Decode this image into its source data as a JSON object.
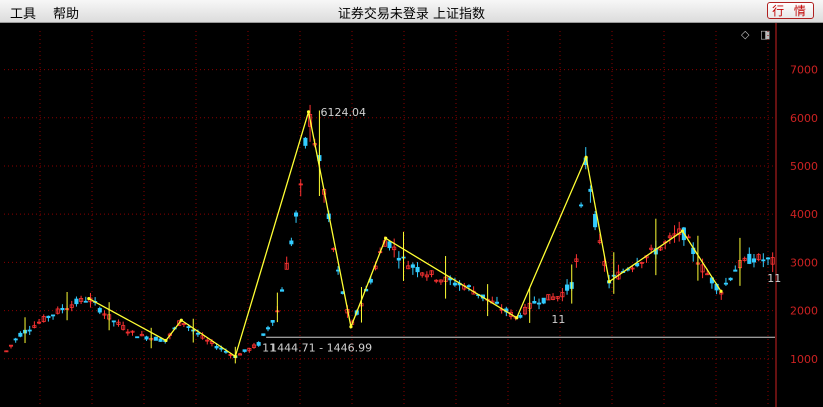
{
  "menu": {
    "tools": "工具",
    "help": "帮助"
  },
  "window_title": "证券交易未登录 上证指数",
  "buttons": {
    "quotes": "行 情"
  },
  "icons": {
    "diamond": "diamond-icon",
    "panel": "panel-toggle-icon"
  },
  "colors": {
    "up": "#ff3333",
    "down": "#33ccff",
    "zigzag": "#ffff33",
    "grid": "#8a0000",
    "axis": "#cc2222",
    "label": "#d0d0d0"
  },
  "chart_data": {
    "type": "candlestick-kline",
    "ylim": [
      0,
      7800
    ],
    "y_ticks": [
      1000,
      2000,
      3000,
      4000,
      5000,
      6000,
      7000
    ],
    "y_tick_labels": [
      "1000",
      "2000",
      "3000",
      "4000",
      "5000",
      "6000",
      "7000"
    ],
    "annotations": {
      "high_label": "6124.04",
      "high_value": 6124.04,
      "low_label": "1444.71 - 1446.99",
      "low_value": 1445.8,
      "count_label_mid": "11",
      "count_label_end": "11",
      "count_label_low": "11"
    },
    "zigzag": [
      {
        "i": 0.11,
        "v": 2250
      },
      {
        "i": 0.21,
        "v": 1380
      },
      {
        "i": 0.23,
        "v": 1800
      },
      {
        "i": 0.3,
        "v": 1050
      },
      {
        "i": 0.395,
        "v": 6124
      },
      {
        "i": 0.45,
        "v": 1664
      },
      {
        "i": 0.495,
        "v": 3500
      },
      {
        "i": 0.665,
        "v": 1850
      },
      {
        "i": 0.755,
        "v": 5180
      },
      {
        "i": 0.785,
        "v": 2600
      },
      {
        "i": 0.88,
        "v": 3650
      },
      {
        "i": 0.93,
        "v": 2400
      }
    ],
    "price_path": [
      [
        0.0,
        1100
      ],
      [
        0.02,
        1500
      ],
      [
        0.04,
        1700
      ],
      [
        0.06,
        1900
      ],
      [
        0.09,
        2150
      ],
      [
        0.11,
        2250
      ],
      [
        0.14,
        1800
      ],
      [
        0.17,
        1500
      ],
      [
        0.21,
        1380
      ],
      [
        0.23,
        1800
      ],
      [
        0.26,
        1400
      ],
      [
        0.3,
        1050
      ],
      [
        0.33,
        1300
      ],
      [
        0.355,
        2000
      ],
      [
        0.37,
        3200
      ],
      [
        0.385,
        4500
      ],
      [
        0.395,
        6124
      ],
      [
        0.41,
        5000
      ],
      [
        0.43,
        3000
      ],
      [
        0.45,
        1664
      ],
      [
        0.47,
        2400
      ],
      [
        0.495,
        3500
      ],
      [
        0.52,
        3000
      ],
      [
        0.56,
        2700
      ],
      [
        0.6,
        2500
      ],
      [
        0.63,
        2200
      ],
      [
        0.665,
        1850
      ],
      [
        0.69,
        2200
      ],
      [
        0.72,
        2300
      ],
      [
        0.74,
        2600
      ],
      [
        0.755,
        5180
      ],
      [
        0.77,
        3500
      ],
      [
        0.785,
        2600
      ],
      [
        0.81,
        2900
      ],
      [
        0.85,
        3300
      ],
      [
        0.88,
        3650
      ],
      [
        0.905,
        2900
      ],
      [
        0.93,
        2400
      ],
      [
        0.95,
        2900
      ],
      [
        0.97,
        3100
      ],
      [
        1.0,
        3000
      ]
    ],
    "bar_count": 165
  }
}
